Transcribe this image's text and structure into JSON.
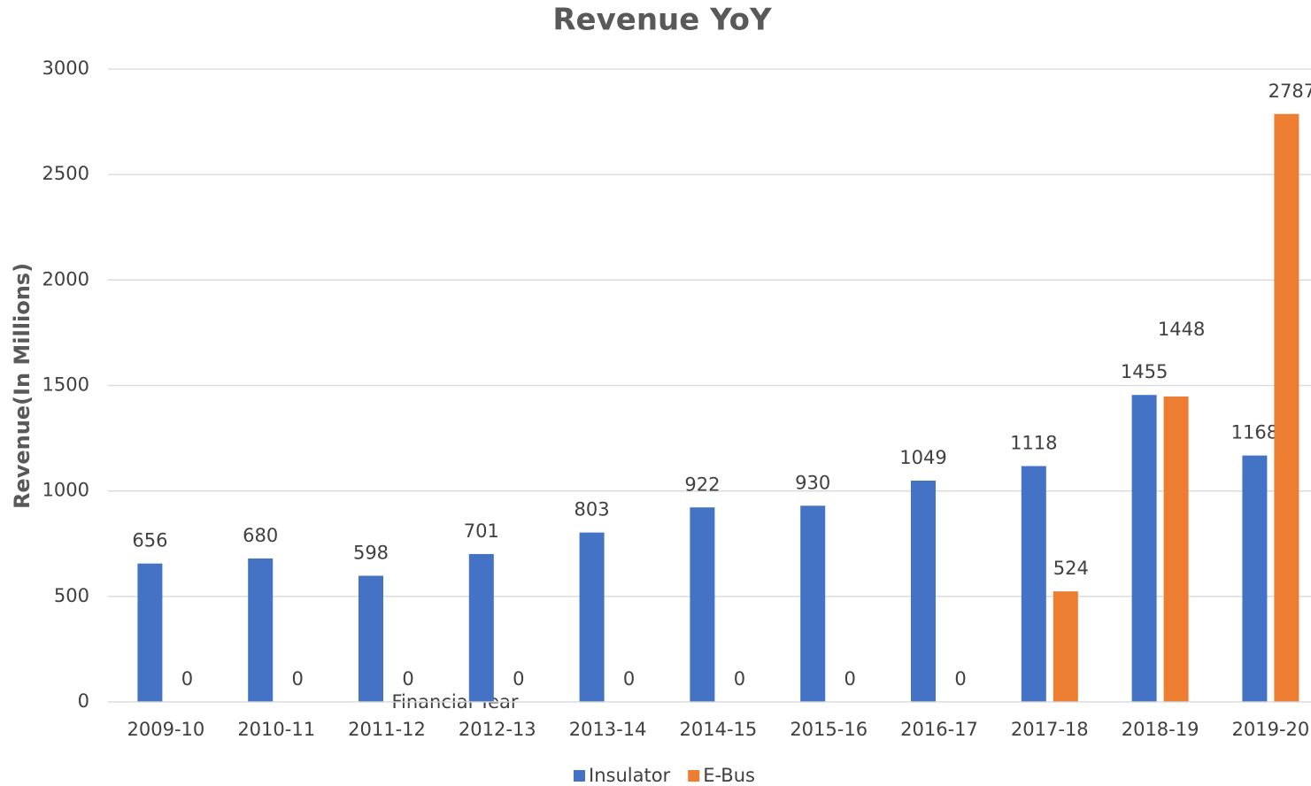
{
  "chart_data": {
    "type": "bar",
    "title": "Revenue YoY",
    "x_label": "Financial Year",
    "y_label": "Revenue(In Millions)",
    "categories": [
      "2009-10",
      "2010-11",
      "2011-12",
      "2012-13",
      "2013-14",
      "2014-15",
      "2015-16",
      "2016-17",
      "2017-18",
      "2018-19",
      "2019-20"
    ],
    "series": [
      {
        "name": "Insulator",
        "color": "#4472c4",
        "values": [
          656,
          680,
          598,
          701,
          803,
          922,
          930,
          1049,
          1118,
          1455,
          1168
        ]
      },
      {
        "name": "E-Bus",
        "color": "#ed7d31",
        "values": [
          0,
          0,
          0,
          0,
          0,
          0,
          0,
          0,
          524,
          1448,
          2787
        ]
      }
    ],
    "ylim": [
      0,
      3000
    ],
    "yticks": [
      0,
      500,
      1000,
      1500,
      2000,
      2500,
      3000
    ],
    "grid": true,
    "legend": "bottom"
  }
}
